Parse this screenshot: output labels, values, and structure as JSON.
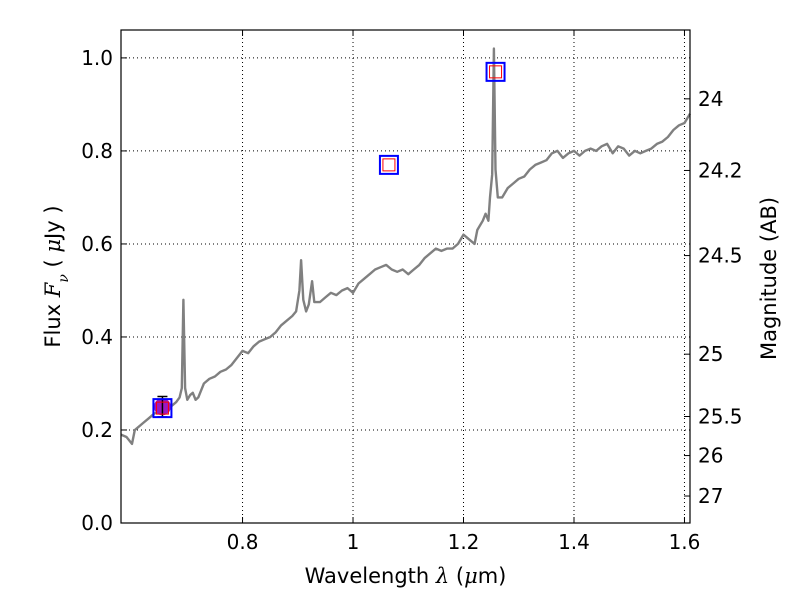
{
  "chart_data": {
    "type": "line",
    "xlabel_parts": [
      "Wavelength  ",
      "λ",
      " (",
      "μ",
      "m)"
    ],
    "ylabel_parts": [
      "Flux  ",
      "F",
      "ν",
      "  ( ",
      "μ",
      "Jy )"
    ],
    "y2label": "Magnitude (AB)",
    "xlim": [
      0.58,
      1.61
    ],
    "ylim": [
      0.0,
      1.06
    ],
    "x_ticks": [
      0.8,
      1.0,
      1.2,
      1.4,
      1.6
    ],
    "x_tick_labels": [
      "0.8",
      "1",
      "1.2",
      "1.4",
      "1.6"
    ],
    "y_ticks": [
      0.0,
      0.2,
      0.4,
      0.6,
      0.8,
      1.0
    ],
    "y_tick_labels": [
      "0.0",
      "0.2",
      "0.4",
      "0.6",
      "0.8",
      "1.0"
    ],
    "y2_ticks": [
      {
        "label": "24",
        "flux": 0.912
      },
      {
        "label": "24.2",
        "flux": 0.758
      },
      {
        "label": "24.5",
        "flux": 0.575
      },
      {
        "label": "25",
        "flux": 0.363
      },
      {
        "label": "25.5",
        "flux": 0.229
      },
      {
        "label": "26",
        "flux": 0.145
      },
      {
        "label": "27",
        "flux": 0.058
      }
    ],
    "grid": true,
    "colors": {
      "spectrum": "#808080",
      "square_outer": "#0000ff",
      "square_inner": "#ff0000",
      "circle": "#9b18c2",
      "error_bar": "#000000"
    },
    "series": [
      {
        "kind": "spectrum",
        "points": [
          [
            0.58,
            0.19
          ],
          [
            0.59,
            0.185
          ],
          [
            0.6,
            0.17
          ],
          [
            0.605,
            0.2
          ],
          [
            0.61,
            0.205
          ],
          [
            0.62,
            0.215
          ],
          [
            0.63,
            0.225
          ],
          [
            0.64,
            0.235
          ],
          [
            0.65,
            0.24
          ],
          [
            0.66,
            0.245
          ],
          [
            0.67,
            0.25
          ],
          [
            0.68,
            0.26
          ],
          [
            0.686,
            0.27
          ],
          [
            0.69,
            0.29
          ],
          [
            0.693,
            0.48
          ],
          [
            0.696,
            0.29
          ],
          [
            0.7,
            0.265
          ],
          [
            0.705,
            0.275
          ],
          [
            0.71,
            0.28
          ],
          [
            0.715,
            0.265
          ],
          [
            0.72,
            0.27
          ],
          [
            0.725,
            0.285
          ],
          [
            0.73,
            0.3
          ],
          [
            0.74,
            0.31
          ],
          [
            0.75,
            0.315
          ],
          [
            0.76,
            0.325
          ],
          [
            0.77,
            0.33
          ],
          [
            0.78,
            0.34
          ],
          [
            0.79,
            0.355
          ],
          [
            0.8,
            0.37
          ],
          [
            0.81,
            0.365
          ],
          [
            0.82,
            0.38
          ],
          [
            0.83,
            0.39
          ],
          [
            0.84,
            0.395
          ],
          [
            0.85,
            0.4
          ],
          [
            0.86,
            0.41
          ],
          [
            0.87,
            0.425
          ],
          [
            0.88,
            0.435
          ],
          [
            0.89,
            0.445
          ],
          [
            0.897,
            0.455
          ],
          [
            0.903,
            0.5
          ],
          [
            0.906,
            0.565
          ],
          [
            0.91,
            0.48
          ],
          [
            0.915,
            0.455
          ],
          [
            0.92,
            0.47
          ],
          [
            0.926,
            0.52
          ],
          [
            0.93,
            0.475
          ],
          [
            0.94,
            0.475
          ],
          [
            0.95,
            0.485
          ],
          [
            0.96,
            0.495
          ],
          [
            0.97,
            0.49
          ],
          [
            0.98,
            0.5
          ],
          [
            0.99,
            0.505
          ],
          [
            1.0,
            0.495
          ],
          [
            1.01,
            0.515
          ],
          [
            1.02,
            0.525
          ],
          [
            1.03,
            0.535
          ],
          [
            1.04,
            0.545
          ],
          [
            1.05,
            0.55
          ],
          [
            1.06,
            0.555
          ],
          [
            1.07,
            0.545
          ],
          [
            1.08,
            0.54
          ],
          [
            1.09,
            0.545
          ],
          [
            1.1,
            0.535
          ],
          [
            1.11,
            0.545
          ],
          [
            1.12,
            0.555
          ],
          [
            1.13,
            0.57
          ],
          [
            1.14,
            0.58
          ],
          [
            1.15,
            0.59
          ],
          [
            1.16,
            0.585
          ],
          [
            1.17,
            0.59
          ],
          [
            1.18,
            0.59
          ],
          [
            1.19,
            0.6
          ],
          [
            1.2,
            0.62
          ],
          [
            1.21,
            0.61
          ],
          [
            1.22,
            0.6
          ],
          [
            1.225,
            0.63
          ],
          [
            1.23,
            0.64
          ],
          [
            1.235,
            0.65
          ],
          [
            1.24,
            0.665
          ],
          [
            1.245,
            0.65
          ],
          [
            1.248,
            0.7
          ],
          [
            1.252,
            0.75
          ],
          [
            1.255,
            1.02
          ],
          [
            1.258,
            0.76
          ],
          [
            1.262,
            0.7
          ],
          [
            1.27,
            0.7
          ],
          [
            1.28,
            0.72
          ],
          [
            1.29,
            0.73
          ],
          [
            1.3,
            0.74
          ],
          [
            1.31,
            0.745
          ],
          [
            1.32,
            0.76
          ],
          [
            1.33,
            0.77
          ],
          [
            1.34,
            0.775
          ],
          [
            1.35,
            0.78
          ],
          [
            1.36,
            0.795
          ],
          [
            1.37,
            0.8
          ],
          [
            1.38,
            0.785
          ],
          [
            1.39,
            0.795
          ],
          [
            1.4,
            0.8
          ],
          [
            1.41,
            0.79
          ],
          [
            1.42,
            0.8
          ],
          [
            1.43,
            0.805
          ],
          [
            1.44,
            0.8
          ],
          [
            1.45,
            0.81
          ],
          [
            1.46,
            0.815
          ],
          [
            1.47,
            0.795
          ],
          [
            1.48,
            0.81
          ],
          [
            1.49,
            0.805
          ],
          [
            1.5,
            0.79
          ],
          [
            1.51,
            0.8
          ],
          [
            1.52,
            0.795
          ],
          [
            1.53,
            0.8
          ],
          [
            1.54,
            0.805
          ],
          [
            1.55,
            0.815
          ],
          [
            1.56,
            0.82
          ],
          [
            1.57,
            0.83
          ],
          [
            1.58,
            0.845
          ],
          [
            1.59,
            0.855
          ],
          [
            1.6,
            0.86
          ],
          [
            1.61,
            0.88
          ]
        ]
      },
      {
        "kind": "photometry_squares",
        "points": [
          [
            0.655,
            0.247
          ],
          [
            1.065,
            0.77
          ],
          [
            1.258,
            0.97
          ]
        ]
      },
      {
        "kind": "photometry_circle",
        "points": [
          [
            0.655,
            0.25
          ]
        ],
        "error": [
          0.022
        ]
      }
    ]
  }
}
